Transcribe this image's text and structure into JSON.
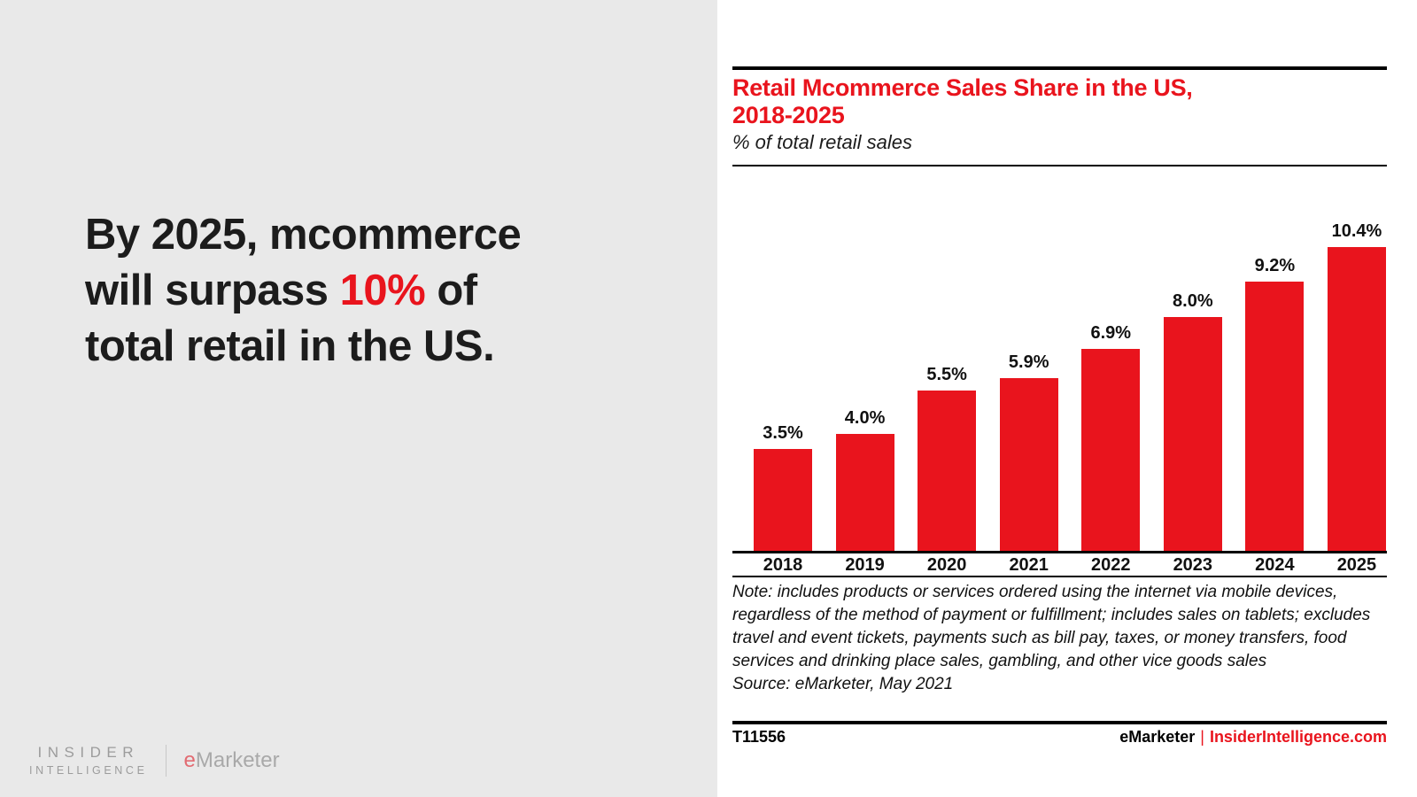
{
  "left_panel": {
    "headline": {
      "line1": "By 2025, mcommerce",
      "line2_pre": "will surpass ",
      "line2_red": "10%",
      "line2_post": " of",
      "line3": "total retail in the US."
    },
    "logo": {
      "insider": "INSIDER",
      "intelligence": "INTELLIGENCE",
      "emarketer_e": "e",
      "emarketer_rest": "Marketer"
    }
  },
  "chart": {
    "title_line1": "Retail Mcommerce Sales Share in the US,",
    "title_line2": "2018-2025",
    "subtitle": "% of total retail sales",
    "note": "Note: includes products or services ordered using the internet via mobile devices, regardless of the method of payment or fulfillment; includes sales on tablets; excludes travel and event tickets, payments such as bill pay, taxes, or money transfers, food services and drinking place sales, gambling, and other vice goods sales",
    "source": "Source: eMarketer, May 2021",
    "footer_id": "T11556",
    "footer_brand": "eMarketer",
    "footer_sep": "|",
    "footer_url": "InsiderIntelligence.com"
  },
  "chart_data": {
    "type": "bar",
    "title": "Retail Mcommerce Sales Share in the US, 2018-2025",
    "subtitle": "% of total retail sales",
    "xlabel": "",
    "ylabel": "% of total retail sales",
    "categories": [
      "2018",
      "2019",
      "2020",
      "2021",
      "2022",
      "2023",
      "2024",
      "2025"
    ],
    "values": [
      3.5,
      4.0,
      5.5,
      5.9,
      6.9,
      8.0,
      9.2,
      10.4
    ],
    "labels": [
      "3.5%",
      "4.0%",
      "5.5%",
      "5.9%",
      "6.9%",
      "8.0%",
      "9.2%",
      "10.4%"
    ],
    "ylim": [
      0,
      11
    ],
    "grid": false,
    "legend": false,
    "bar_color": "#E9141D"
  },
  "colors": {
    "accent_red": "#E9141D",
    "panel_gray": "#E9E9E9",
    "text_dark": "#1C1C1C",
    "logo_gray": "#9C9C9C",
    "logo_e_red": "#E26B72"
  }
}
